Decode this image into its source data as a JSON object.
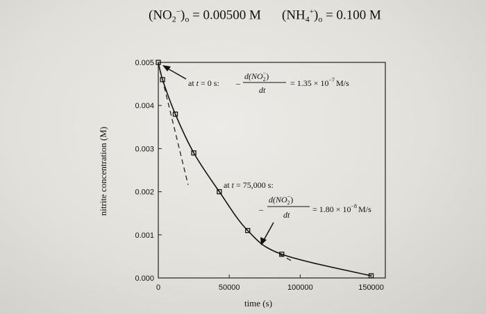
{
  "header": {
    "left_species": "(NO",
    "left_sub": "2",
    "left_sup": "−",
    "left_tail": ")",
    "left_tail_sub": "o",
    "left_value": " = 0.00500 M",
    "right_species": "(NH",
    "right_sub": "4",
    "right_sup": "+",
    "right_tail": ")",
    "right_tail_sub": "o",
    "right_value": " = 0.100 M"
  },
  "chart_data": {
    "type": "line",
    "xlabel": "time (s)",
    "ylabel": "nitrite concentration (M)",
    "xlim": [
      0,
      160000
    ],
    "ylim": [
      0,
      0.005
    ],
    "x_ticks": [
      "0",
      "50000",
      "100000",
      "150000"
    ],
    "x_tick_values": [
      0,
      50000,
      100000,
      150000
    ],
    "y_ticks": [
      "0.000",
      "0.001",
      "0.002",
      "0.003",
      "0.004",
      "0.005"
    ],
    "y_tick_values": [
      0,
      0.001,
      0.002,
      0.003,
      0.004,
      0.005
    ],
    "series": [
      {
        "x": [
          0,
          3000,
          12000,
          25000,
          43000,
          63000,
          87000,
          150000
        ],
        "y": [
          0.005,
          0.0046,
          0.0038,
          0.0029,
          0.002,
          0.0011,
          0.00055,
          5e-05
        ]
      }
    ],
    "tangents": [
      {
        "x": [
          0,
          21000
        ],
        "y": [
          0.005,
          0.00216
        ]
      },
      {
        "x": [
          75000,
          95000
        ],
        "y": [
          0.000738,
          0.000378
        ]
      }
    ],
    "annotations": {
      "a1_prefix": "at ",
      "a1_t": "t",
      "a1_rest": " = 0 s:",
      "a1_minus": "–",
      "a1_num": "d(NO",
      "a1_num_sub": "2",
      "a1_num_sup": "−",
      "a1_num_close": ")",
      "a1_den": "dt",
      "a1_value": "= 1.35 × 10",
      "a1_exp": "−7",
      "a1_unit": "M/s",
      "a2_prefix": "at ",
      "a2_t": "t",
      "a2_rest": " = 75,000 s:",
      "a2_minus": "–",
      "a2_num": "d(NO",
      "a2_num_sub": "2",
      "a2_num_sup": "−",
      "a2_num_close": ")",
      "a2_den": "dt",
      "a2_value": "= 1.80 × 10",
      "a2_exp": "−8",
      "a2_unit": "M/s"
    },
    "grid": false
  }
}
